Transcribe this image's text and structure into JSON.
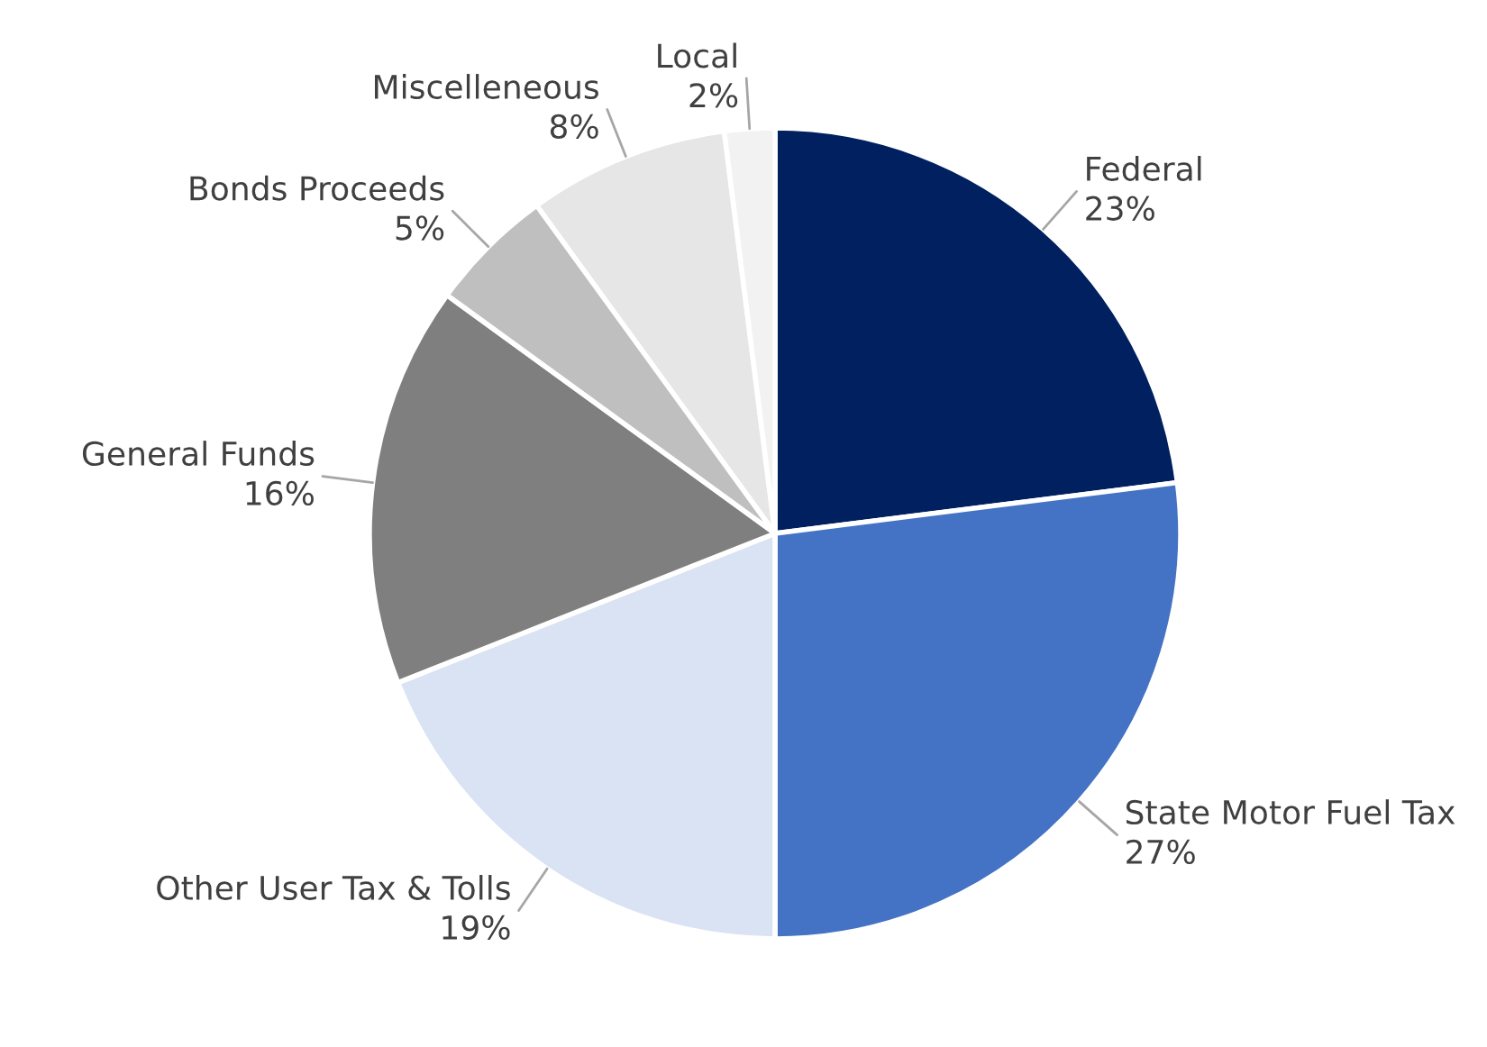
{
  "chart_data": {
    "type": "pie",
    "categories": [
      "Federal",
      "State Motor Fuel Tax",
      "Other User Tax & Tolls",
      "General Funds",
      "Bonds Proceeds",
      "Miscelleneous",
      "Local"
    ],
    "values": [
      23,
      27,
      19,
      16,
      5,
      8,
      2
    ],
    "value_labels": [
      "23%",
      "27%",
      "19%",
      "16%",
      "5%",
      "8%",
      "2%"
    ],
    "colors": [
      "#002060",
      "#4472c4",
      "#dae3f3",
      "#7f7f7f",
      "#bfbfbf",
      "#e7e6e6",
      "#f2f2f2"
    ]
  }
}
